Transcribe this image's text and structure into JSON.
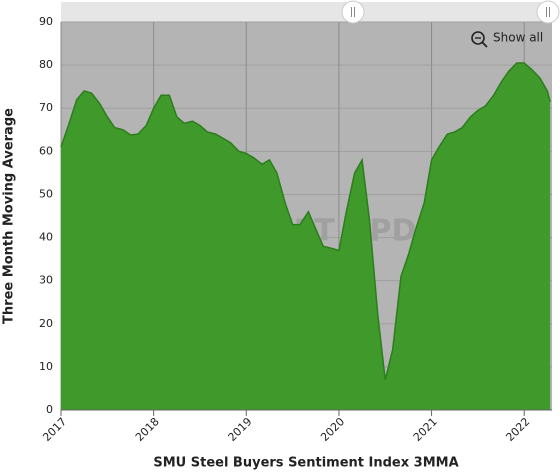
{
  "chart_data": {
    "type": "area",
    "title": "SMU Steel Buyers Sentiment Index 3MMA",
    "y_label": "Three Month Moving Average",
    "watermark": "STEEL MARKET UPDATE",
    "button": "Show all",
    "x": [
      2017.0,
      2017.08,
      2017.17,
      2017.25,
      2017.33,
      2017.42,
      2017.5,
      2017.58,
      2017.67,
      2017.75,
      2017.83,
      2017.92,
      2018.0,
      2018.08,
      2018.17,
      2018.25,
      2018.33,
      2018.42,
      2018.5,
      2018.58,
      2018.67,
      2018.75,
      2018.83,
      2018.92,
      2019.0,
      2019.08,
      2019.17,
      2019.25,
      2019.33,
      2019.42,
      2019.5,
      2019.58,
      2019.67,
      2019.75,
      2019.83,
      2019.92,
      2020.0,
      2020.08,
      2020.17,
      2020.25,
      2020.33,
      2020.42,
      2020.5,
      2020.58,
      2020.67,
      2020.75,
      2020.83,
      2020.92,
      2021.0,
      2021.08,
      2021.17,
      2021.25,
      2021.33,
      2021.42,
      2021.5,
      2021.58,
      2021.67,
      2021.75,
      2021.83,
      2021.92,
      2022.0,
      2022.08,
      2022.17,
      2022.25,
      2022.28
    ],
    "series": [
      {
        "name": "SMU Steel Buyers Sentiment Index 3MMA",
        "color": "#3f9a2b",
        "values": [
          61,
          66,
          72,
          74,
          73.5,
          71,
          68,
          65.5,
          65,
          63.8,
          64,
          66,
          70,
          73,
          73,
          68,
          66.5,
          67,
          66,
          64.5,
          64,
          63,
          62,
          60,
          59.5,
          58.5,
          57,
          58,
          55,
          48,
          43,
          43,
          46,
          42,
          38,
          37.5,
          37,
          46,
          55,
          58,
          44,
          22,
          7,
          14,
          31,
          36,
          42,
          48,
          58,
          61,
          64,
          64.5,
          65.5,
          68,
          69.5,
          70.5,
          73,
          76,
          78.5,
          80.5,
          80.5,
          79,
          77,
          74,
          71.5
        ]
      }
    ],
    "xlim": [
      2017,
      2022.3
    ],
    "xticks": [
      2017,
      2018,
      2019,
      2020,
      2021,
      2022
    ],
    "ylim": [
      0,
      90
    ],
    "yticks": [
      0,
      10,
      20,
      30,
      40,
      50,
      60,
      70,
      80,
      90
    ],
    "grid": true,
    "background": "#b4b4b4"
  }
}
